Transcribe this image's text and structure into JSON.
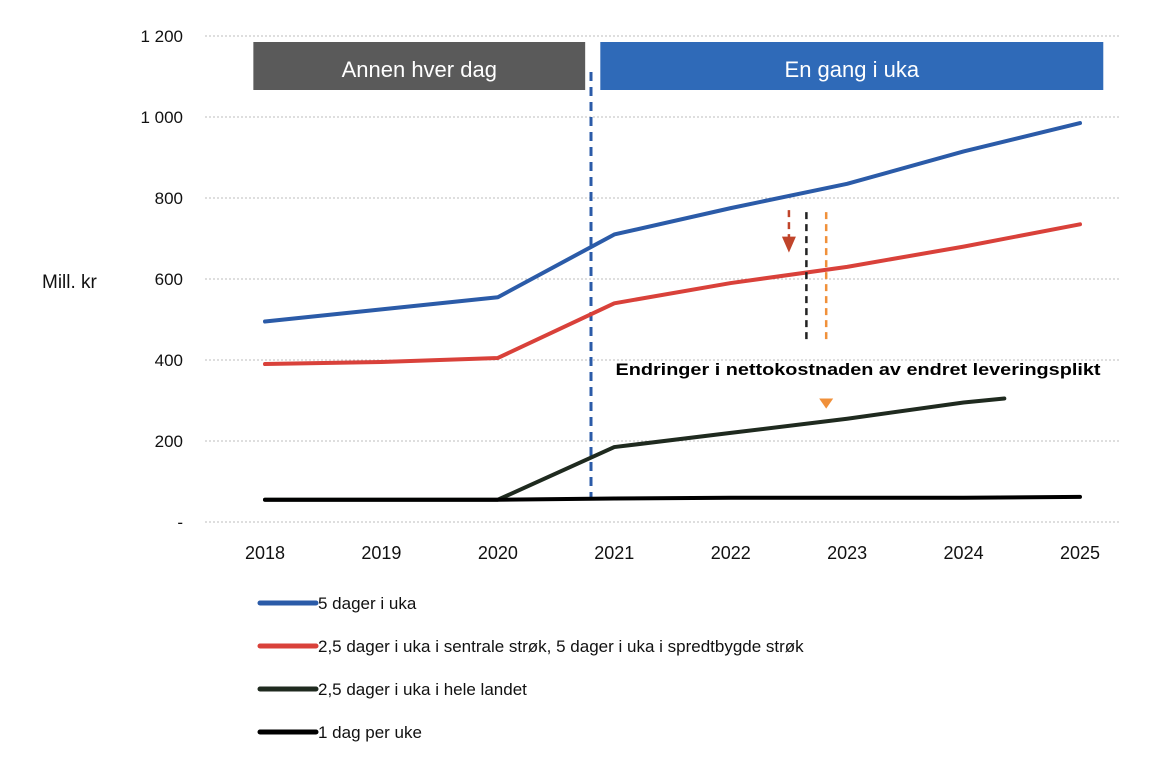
{
  "chart_data": {
    "type": "line",
    "title": "",
    "ylabel": "Mill. kr",
    "xlabel": "",
    "ylim": [
      0,
      1200
    ],
    "yticks": [
      0,
      200,
      400,
      600,
      800,
      1000,
      1200
    ],
    "ytick_labels": [
      "-",
      "200",
      "400",
      "600",
      "800",
      "1 000",
      "1 200"
    ],
    "categories": [
      "2018",
      "2019",
      "2020",
      "2021",
      "2022",
      "2023",
      "2024",
      "2025"
    ],
    "x": [
      2018,
      2019,
      2020,
      2021,
      2022,
      2023,
      2024,
      2025
    ],
    "grid": true,
    "legend_position": "bottom-left",
    "series": [
      {
        "name": "5 dager i uka",
        "color": "#2b5ba8",
        "values": [
          495,
          525,
          555,
          710,
          775,
          835,
          915,
          985
        ]
      },
      {
        "name": "2,5 dager i uka i sentrale strøk, 5 dager i uka i spredtbygde strøk",
        "color": "#d9413a",
        "values": [
          390,
          395,
          405,
          540,
          590,
          630,
          680,
          735
        ]
      },
      {
        "name": "2,5 dager i uka i hele landet",
        "color": "#1f2a1f",
        "x": [
          2018,
          2019,
          2020,
          2021,
          2022,
          2023,
          2024,
          2024.35
        ],
        "values": [
          55,
          55,
          55,
          185,
          220,
          255,
          295,
          305
        ]
      },
      {
        "name": "1 dag per uke",
        "color": "#000000",
        "values": [
          55,
          55,
          55,
          58,
          60,
          60,
          60,
          62
        ]
      }
    ],
    "period_bands": [
      {
        "label": "Annen hver dag",
        "color": "#5a5a5a",
        "x_start": 2017.9,
        "x_end": 2020.75
      },
      {
        "label": "En gang i uka",
        "color": "#2f6ab8",
        "x_start": 2020.88,
        "x_end": 2025.2
      }
    ],
    "divider_x": 2020.8,
    "divider_color": "#2b5ba8",
    "annotation": {
      "text": "Endringer i nettokostnaden av endret leveringsplikt",
      "arrows": [
        {
          "x": 2022.5,
          "y_from": 770,
          "y_to": 665,
          "color": "#c0442a",
          "style": "dashed-arrow"
        },
        {
          "x": 2022.65,
          "y_from": 765,
          "y_to": 450,
          "color": "#222222",
          "style": "dashed"
        },
        {
          "x": 2022.82,
          "y_from": 765,
          "y_to": 450,
          "color": "#f0903a",
          "style": "dashed"
        },
        {
          "x": 2022.82,
          "y_from": 305,
          "y_to": 280,
          "color": "#f0903a",
          "style": "arrowhead"
        }
      ]
    }
  }
}
